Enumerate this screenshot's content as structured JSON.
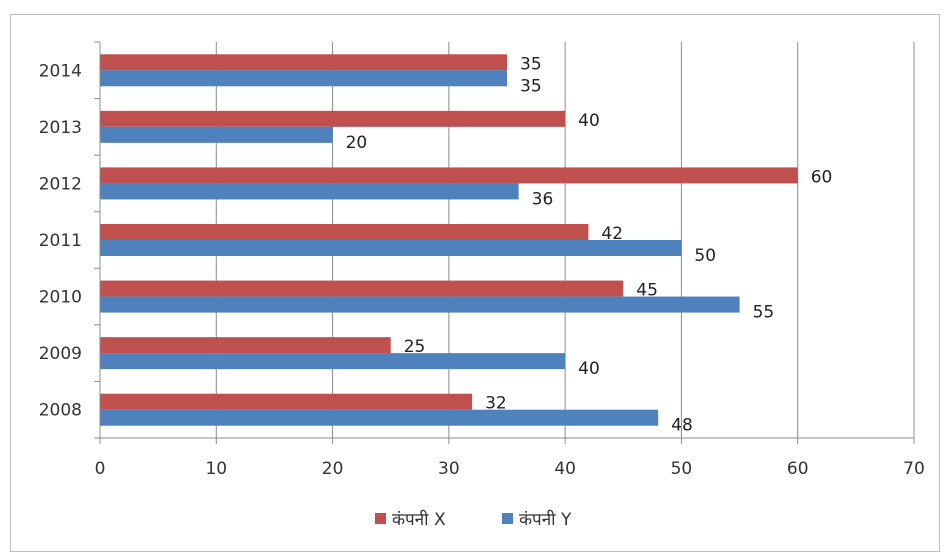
{
  "chart_data": {
    "type": "bar",
    "orientation": "horizontal",
    "categories": [
      "2008",
      "2009",
      "2010",
      "2011",
      "2012",
      "2013",
      "2014"
    ],
    "series": [
      {
        "name": "कंपनी X",
        "color": "#c0504d",
        "values": [
          32,
          25,
          45,
          42,
          60,
          40,
          35
        ]
      },
      {
        "name": "कंपनी Y",
        "color": "#4f81bd",
        "values": [
          48,
          40,
          55,
          50,
          36,
          20,
          35
        ]
      }
    ],
    "xlim": [
      0,
      70
    ],
    "x_ticks": [
      0,
      10,
      20,
      30,
      40,
      50,
      60,
      70
    ],
    "grid": true,
    "legend": "bottom",
    "data_labels": true
  }
}
